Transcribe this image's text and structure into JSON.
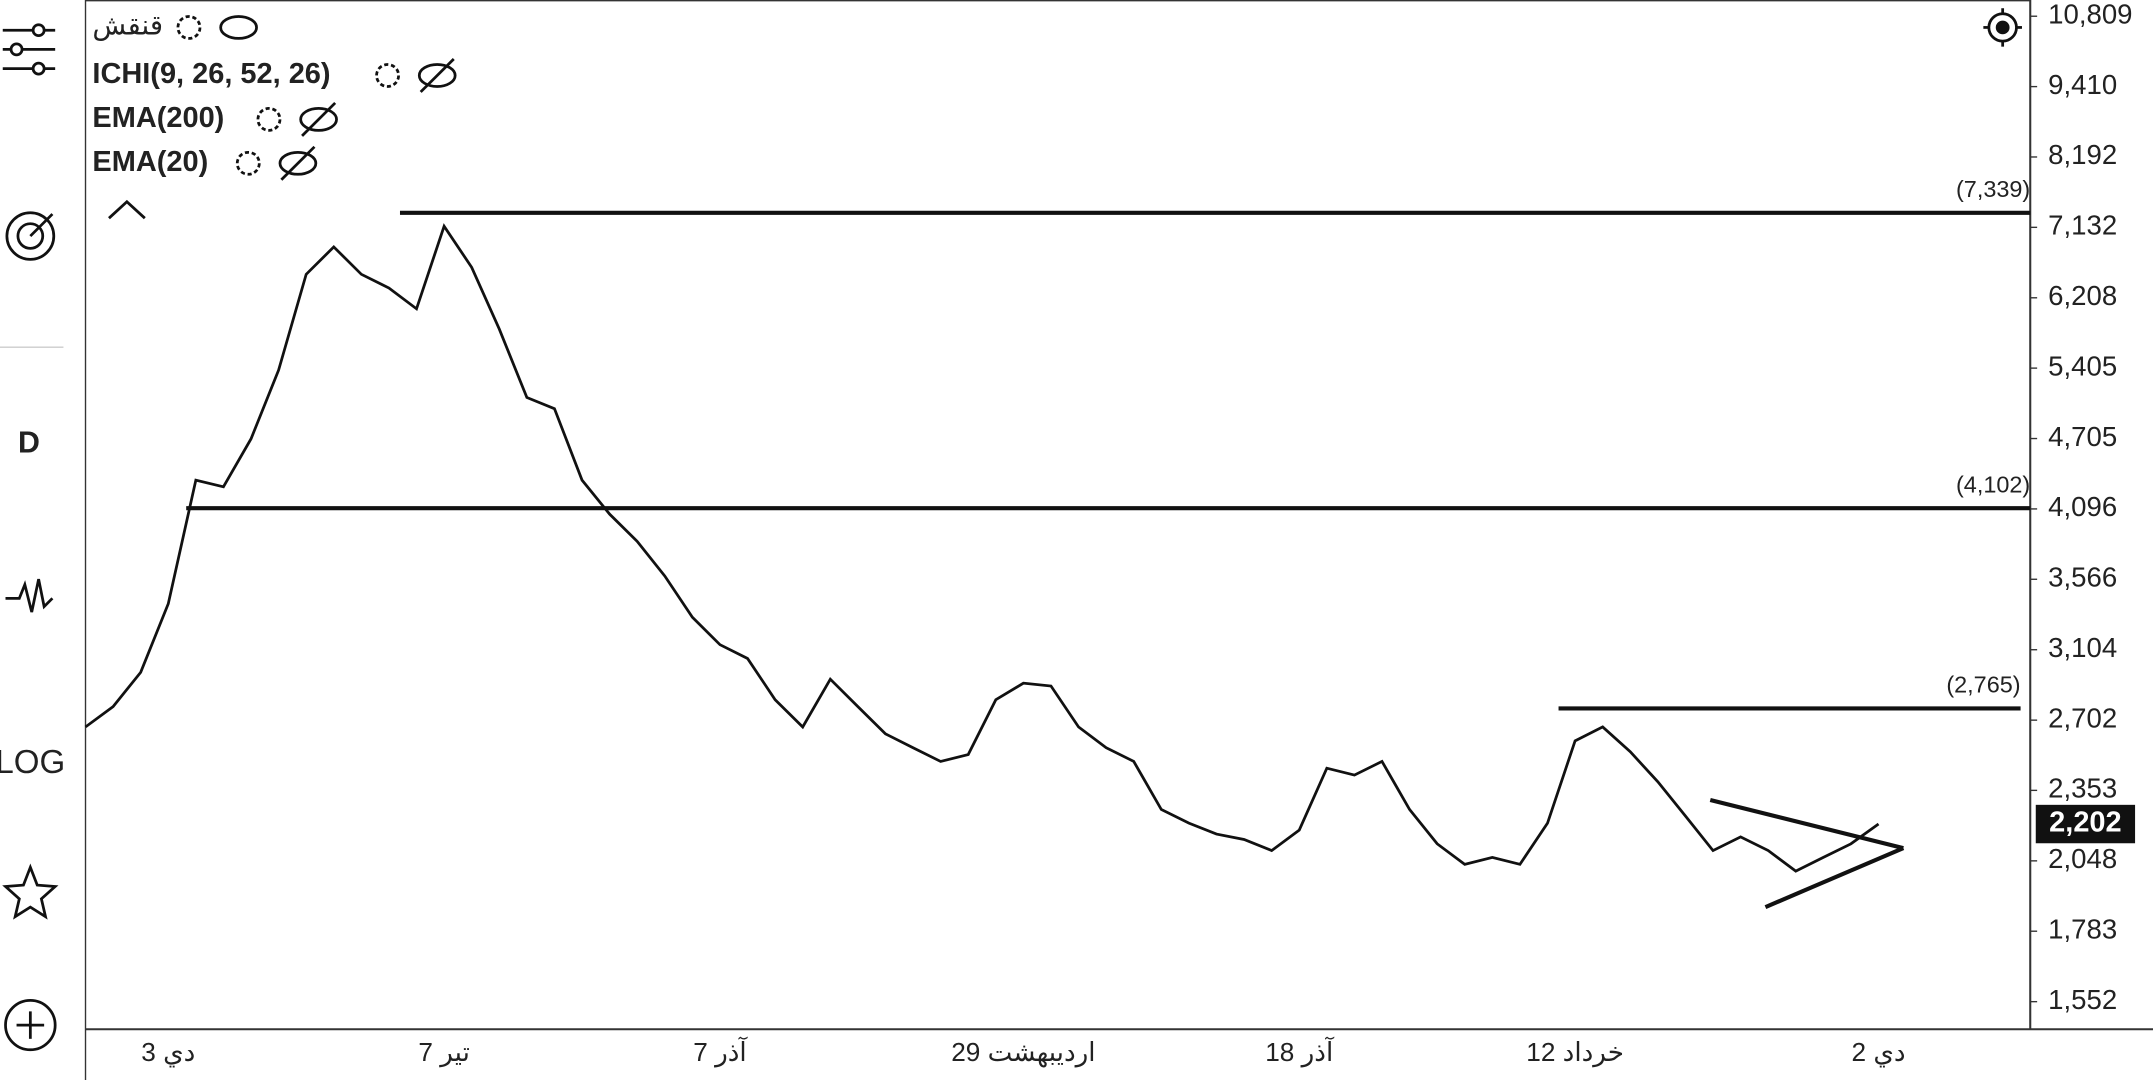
{
  "sidebar": {
    "interval": "D",
    "scale": "LOG"
  },
  "indicators": [
    "قنقش",
    "ICHI(9, 26, 52, 26)",
    "EMA(200)",
    "EMA(20)"
  ],
  "chart_data": {
    "type": "line",
    "log_scale": true,
    "color": "#111111",
    "categories": [
      null,
      null,
      null,
      "3 دي",
      null,
      null,
      null,
      null,
      null,
      null,
      null,
      null,
      null,
      "7 تير",
      null,
      null,
      null,
      null,
      null,
      null,
      null,
      null,
      null,
      "7 آذر",
      null,
      null,
      null,
      null,
      null,
      null,
      null,
      null,
      null,
      null,
      "29 اردیبهشت",
      null,
      null,
      null,
      null,
      null,
      null,
      null,
      null,
      null,
      "18 آذر",
      null,
      null,
      null,
      null,
      null,
      null,
      null,
      null,
      null,
      "12 خرداد",
      null,
      null,
      null,
      null,
      null,
      null,
      null,
      null,
      null,
      null,
      "2 دي"
    ],
    "values": [
      2666,
      2775,
      2969,
      3398,
      4335,
      4278,
      4702,
      5384,
      6502,
      6862,
      6502,
      6329,
      6075,
      7148,
      6591,
      5837,
      5101,
      4990,
      4335,
      4054,
      3842,
      3589,
      3309,
      3135,
      3051,
      2813,
      2666,
      2929,
      2775,
      2630,
      2559,
      2491,
      2525,
      2813,
      2906,
      2890,
      2666,
      2559,
      2491,
      2266,
      2206,
      2159,
      2136,
      2090,
      2176,
      2458,
      2425,
      2491,
      2266,
      2118,
      2034,
      2062,
      2034,
      2206,
      2594,
      2666,
      2539,
      2393,
      2237,
      2090,
      2147,
      2090,
      2007,
      2062,
      2118,
      2202
    ],
    "ylim": [
      1470,
      11160
    ],
    "yticks": [
      {
        "value": 10809,
        "label": "10,809"
      },
      {
        "value": 9410,
        "label": "9,410"
      },
      {
        "value": 8192,
        "label": "8,192"
      },
      {
        "value": 7132,
        "label": "7,132"
      },
      {
        "value": 6208,
        "label": "6,208"
      },
      {
        "value": 5405,
        "label": "5,405"
      },
      {
        "value": 4705,
        "label": "4,705"
      },
      {
        "value": 4096,
        "label": "4,096"
      },
      {
        "value": 3566,
        "label": "3,566"
      },
      {
        "value": 3104,
        "label": "3,104"
      },
      {
        "value": 2702,
        "label": "2,702"
      },
      {
        "value": 2353,
        "label": "2,353"
      },
      {
        "value": 2048,
        "label": "2,048"
      },
      {
        "value": 1783,
        "label": "1,783"
      },
      {
        "value": 1552,
        "label": "1,552"
      }
    ],
    "levels": [
      {
        "value": 7339,
        "label": "(7,339)"
      },
      {
        "value": 4102,
        "label": "(4,102)"
      },
      {
        "value": 2765,
        "label": "(2,765)"
      }
    ],
    "last_price": {
      "value": 2202,
      "label": "2,202"
    }
  }
}
